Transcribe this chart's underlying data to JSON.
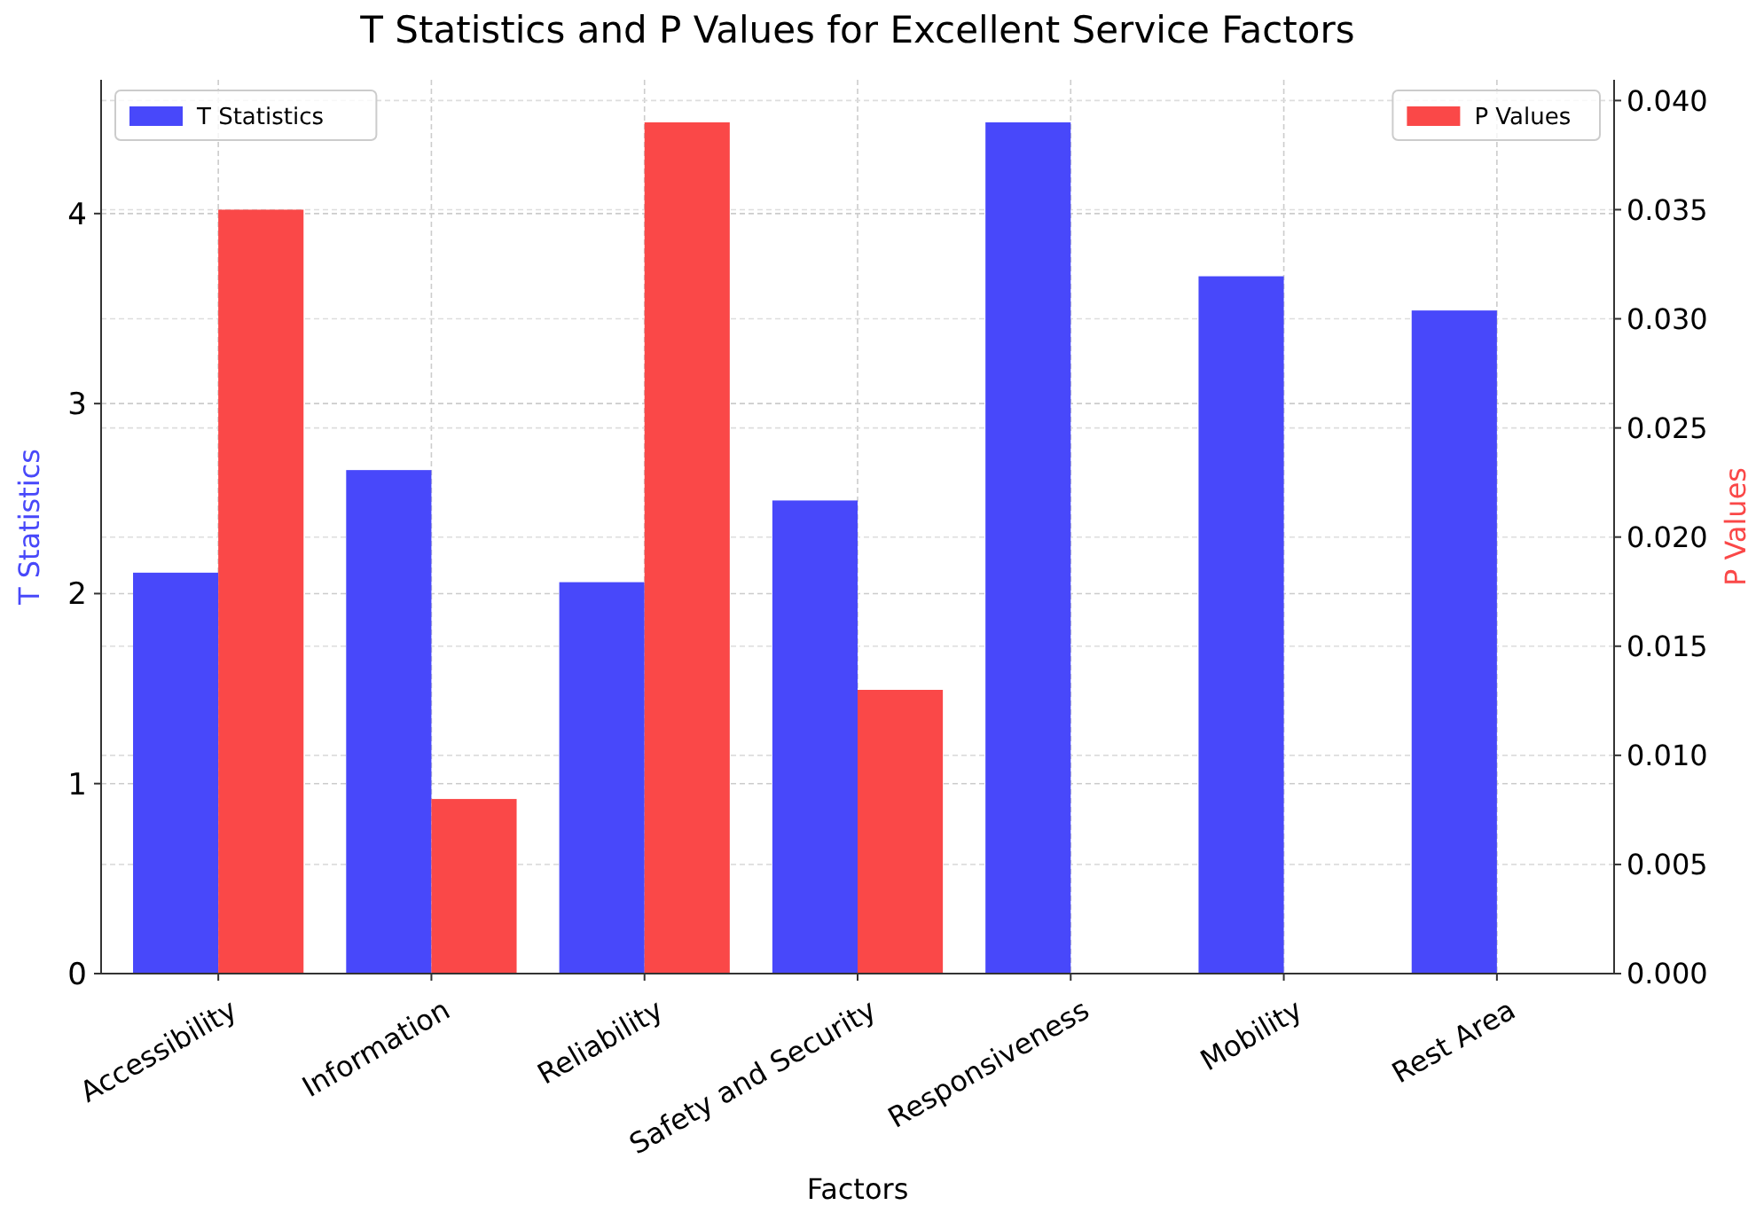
{
  "chart_data": {
    "type": "bar",
    "title": "T Statistics and P Values for Excellent Service Factors",
    "xlabel": "Factors",
    "ylabel": "T Statistics",
    "y2label": "P Values",
    "categories": [
      "Accessibility",
      "Information",
      "Reliability",
      "Safety and Security",
      "Responsiveness",
      "Mobility",
      "Rest Area"
    ],
    "series": [
      {
        "name": "T Statistics",
        "color": "#4848fa",
        "values": [
          2.11,
          2.65,
          2.06,
          2.49,
          4.48,
          3.67,
          3.49
        ]
      },
      {
        "name": "P Values",
        "color": "#fa4848",
        "axis": "y2",
        "values": [
          0.035,
          0.008,
          0.039,
          0.013,
          null,
          null,
          null
        ]
      }
    ],
    "ylim": [
      0,
      4.704
    ],
    "yticks": [
      0,
      1,
      2,
      3,
      4
    ],
    "y2lim": [
      0,
      0.04095
    ],
    "y2ticks": [
      {
        "value": 0,
        "label": "0.000"
      },
      {
        "value": 0.005,
        "label": "0.005"
      },
      {
        "value": 0.01,
        "label": "0.010"
      },
      {
        "value": 0.015,
        "label": "0.015"
      },
      {
        "value": 0.02,
        "label": "0.020"
      },
      {
        "value": 0.025,
        "label": "0.025"
      },
      {
        "value": 0.03,
        "label": "0.030"
      },
      {
        "value": 0.035,
        "label": "0.035"
      },
      {
        "value": 0.04,
        "label": "0.040"
      }
    ],
    "grid": true,
    "legend": "top"
  }
}
